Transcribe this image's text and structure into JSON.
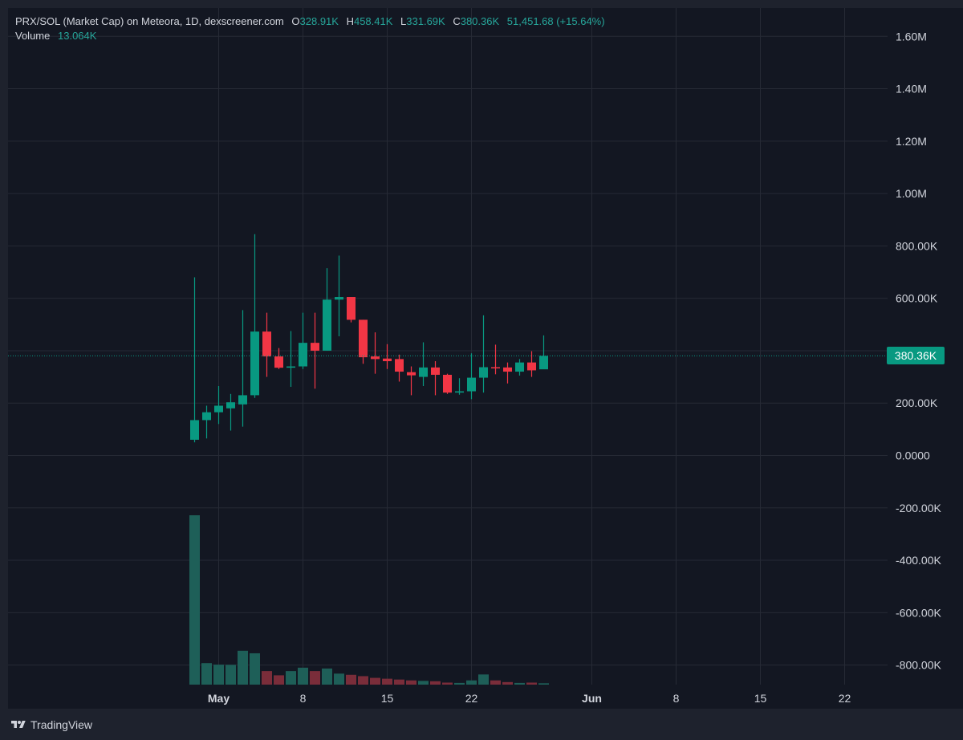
{
  "legend": {
    "symbol": "PRX/SOL (Market Cap) on Meteora, 1D, dexscreener.com",
    "o_key": "O",
    "o_val": "328.91K",
    "h_key": "H",
    "h_val": "458.41K",
    "l_key": "L",
    "l_val": "331.69K",
    "c_key": "C",
    "c_val": "380.36K",
    "change": "51,451.68 (+15.64%)",
    "volume_key": "Volume",
    "volume_val": "13.064K"
  },
  "last_price_label": "380.36K",
  "brand": "TradingView",
  "colors": {
    "up": "#089981",
    "down": "#f23645",
    "vol_up": "#1e5f58",
    "vol_down": "#7a2d3a",
    "grid": "#262a35",
    "text": "#d1d4dc",
    "pane_bg": "#131722",
    "frame_bg": "#1e222d"
  },
  "chart_data": {
    "type": "candlestick",
    "title": "PRX/SOL (Market Cap) on Meteora, 1D, dexscreener.com",
    "interval": "1D",
    "price_axis": {
      "ticks": [
        {
          "v": 1600000,
          "label": "1.60M"
        },
        {
          "v": 1400000,
          "label": "1.40M"
        },
        {
          "v": 1200000,
          "label": "1.20M"
        },
        {
          "v": 1000000,
          "label": "1.00M"
        },
        {
          "v": 800000,
          "label": "800.00K"
        },
        {
          "v": 600000,
          "label": "600.00K"
        },
        {
          "v": 400000,
          "label": "400.00K"
        },
        {
          "v": 200000,
          "label": "200.00K"
        },
        {
          "v": 0,
          "label": "0.0000"
        },
        {
          "v": -200000,
          "label": "-200.00K"
        },
        {
          "v": -400000,
          "label": "-400.00K"
        },
        {
          "v": -600000,
          "label": "-600.00K"
        },
        {
          "v": -800000,
          "label": "-800.00K"
        }
      ],
      "last_price": 380360
    },
    "time_axis": {
      "ticks": [
        {
          "day": 1,
          "label": "May",
          "bold": true
        },
        {
          "day": 8,
          "label": "8",
          "bold": false
        },
        {
          "day": 15,
          "label": "15",
          "bold": false
        },
        {
          "day": 22,
          "label": "22",
          "bold": false
        },
        {
          "day": 32,
          "label": "Jun",
          "bold": true
        },
        {
          "day": 39,
          "label": "8",
          "bold": false
        },
        {
          "day": 46,
          "label": "15",
          "bold": false
        },
        {
          "day": 53,
          "label": "22",
          "bold": false
        }
      ]
    },
    "candles": [
      {
        "day": -1,
        "o": 60000,
        "h": 680000,
        "l": 50000,
        "c": 135000,
        "vol": 1000
      },
      {
        "day": 0,
        "o": 135000,
        "h": 190000,
        "l": 65000,
        "c": 165000,
        "vol": 127
      },
      {
        "day": 1,
        "o": 165000,
        "h": 265000,
        "l": 120000,
        "c": 190000,
        "vol": 118
      },
      {
        "day": 2,
        "o": 180000,
        "h": 235000,
        "l": 95000,
        "c": 203000,
        "vol": 117
      },
      {
        "day": 3,
        "o": 195000,
        "h": 555000,
        "l": 110000,
        "c": 230000,
        "vol": 200
      },
      {
        "day": 4,
        "o": 230000,
        "h": 845000,
        "l": 220000,
        "c": 473000,
        "vol": 185
      },
      {
        "day": 5,
        "o": 473000,
        "h": 545000,
        "l": 300000,
        "c": 378000,
        "vol": 80
      },
      {
        "day": 6,
        "o": 378000,
        "h": 410000,
        "l": 330000,
        "c": 335000,
        "vol": 55
      },
      {
        "day": 7,
        "o": 335000,
        "h": 475000,
        "l": 262000,
        "c": 340000,
        "vol": 80
      },
      {
        "day": 8,
        "o": 340000,
        "h": 545000,
        "l": 330000,
        "c": 430000,
        "vol": 100
      },
      {
        "day": 9,
        "o": 430000,
        "h": 545000,
        "l": 255000,
        "c": 400000,
        "vol": 80
      },
      {
        "day": 10,
        "o": 400000,
        "h": 715000,
        "l": 400000,
        "c": 595000,
        "vol": 95
      },
      {
        "day": 11,
        "o": 595000,
        "h": 763000,
        "l": 455000,
        "c": 605000,
        "vol": 65
      },
      {
        "day": 12,
        "o": 605000,
        "h": 605000,
        "l": 508000,
        "c": 518000,
        "vol": 58
      },
      {
        "day": 13,
        "o": 518000,
        "h": 518000,
        "l": 350000,
        "c": 375000,
        "vol": 50
      },
      {
        "day": 14,
        "o": 378000,
        "h": 470000,
        "l": 312000,
        "c": 368000,
        "vol": 40
      },
      {
        "day": 15,
        "o": 370000,
        "h": 425000,
        "l": 330000,
        "c": 360000,
        "vol": 35
      },
      {
        "day": 16,
        "o": 368000,
        "h": 385000,
        "l": 282000,
        "c": 320000,
        "vol": 30
      },
      {
        "day": 17,
        "o": 318000,
        "h": 340000,
        "l": 230000,
        "c": 306000,
        "vol": 25
      },
      {
        "day": 18,
        "o": 300000,
        "h": 432000,
        "l": 265000,
        "c": 336000,
        "vol": 22
      },
      {
        "day": 19,
        "o": 336000,
        "h": 360000,
        "l": 230000,
        "c": 308000,
        "vol": 20
      },
      {
        "day": 20,
        "o": 308000,
        "h": 312000,
        "l": 235000,
        "c": 240000,
        "vol": 12
      },
      {
        "day": 21,
        "o": 240000,
        "h": 295000,
        "l": 232000,
        "c": 245000,
        "vol": 10
      },
      {
        "day": 22,
        "o": 245000,
        "h": 390000,
        "l": 215000,
        "c": 297000,
        "vol": 25
      },
      {
        "day": 23,
        "o": 297000,
        "h": 535000,
        "l": 240000,
        "c": 337000,
        "vol": 60
      },
      {
        "day": 24,
        "o": 337000,
        "h": 423000,
        "l": 310000,
        "c": 333000,
        "vol": 25
      },
      {
        "day": 25,
        "o": 336000,
        "h": 355000,
        "l": 275000,
        "c": 320000,
        "vol": 15
      },
      {
        "day": 26,
        "o": 320000,
        "h": 368000,
        "l": 305000,
        "c": 355000,
        "vol": 10
      },
      {
        "day": 27,
        "o": 355000,
        "h": 398000,
        "l": 300000,
        "c": 325000,
        "vol": 12
      },
      {
        "day": 28,
        "o": 328910,
        "h": 458410,
        "l": 331690,
        "c": 380360,
        "vol": 8
      }
    ]
  }
}
